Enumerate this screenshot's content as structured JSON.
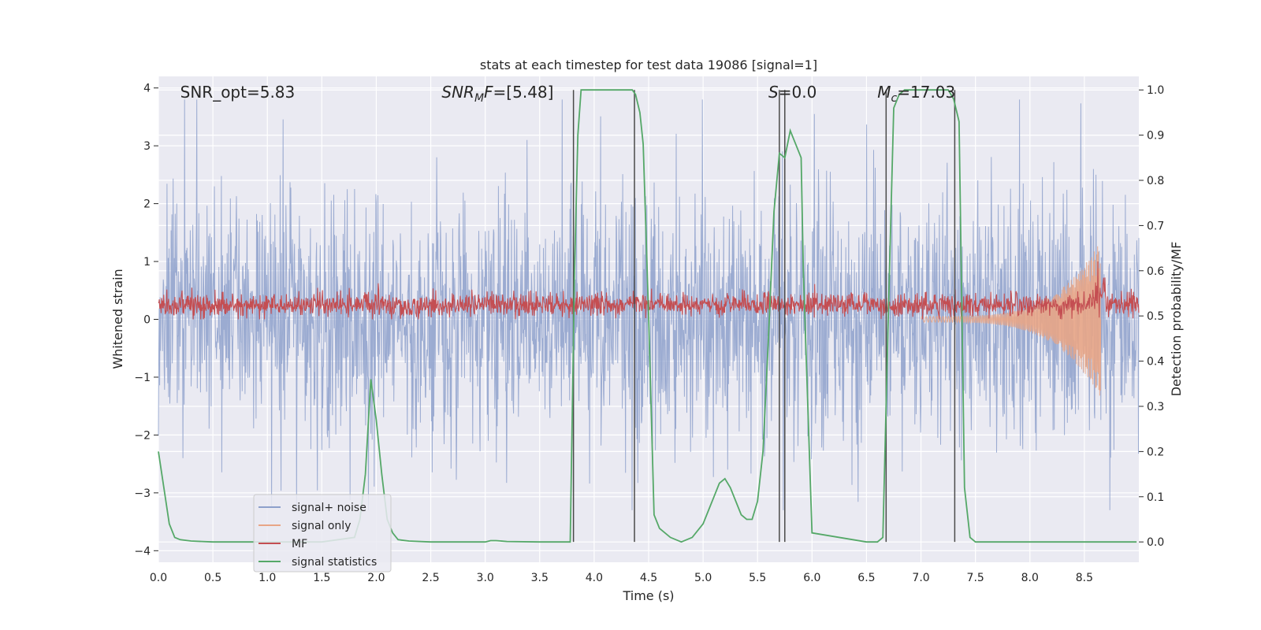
{
  "chart_data": {
    "type": "line",
    "title": "stats at each timestep for test data 19086 [signal=1]",
    "xlabel": "Time (s)",
    "ylabel_left": "Whitened strain",
    "ylabel_right": "Detection probability/MF",
    "xlim": [
      0.0,
      9.0
    ],
    "ylim_left": [
      -4.2,
      4.2
    ],
    "ylim_right": [
      -0.045,
      1.03
    ],
    "xticks": [
      "0.0",
      "0.5",
      "1.0",
      "1.5",
      "2.0",
      "2.5",
      "3.0",
      "3.5",
      "4.0",
      "4.5",
      "5.0",
      "5.5",
      "6.0",
      "6.5",
      "7.0",
      "7.5",
      "8.0",
      "8.5"
    ],
    "yticks_left": [
      "4",
      "3",
      "2",
      "1",
      "0",
      "−1",
      "−2",
      "−3",
      "−4"
    ],
    "yticks_right": [
      "1.0",
      "0.9",
      "0.8",
      "0.7",
      "0.6",
      "0.5",
      "0.4",
      "0.3",
      "0.2",
      "0.1",
      "0.0"
    ],
    "grid": true,
    "annotations": [
      {
        "text": "SNR_opt=5.83",
        "x": 0.2
      },
      {
        "text": "SNR_MF=[5.48]",
        "x": 2.6
      },
      {
        "text": "S=0.0",
        "x": 5.6
      },
      {
        "text": "M_c=17.03",
        "x": 6.6
      }
    ],
    "legend": {
      "placement": "lower-left",
      "entries": [
        {
          "label": "signal+ noise",
          "color": "#8da0cb"
        },
        {
          "label": "signal only",
          "color": "#e8a586"
        },
        {
          "label": "MF",
          "color": "#c44e52"
        },
        {
          "label": "signal statistics",
          "color": "#55a868"
        }
      ]
    },
    "series": [
      {
        "name": "signal+ noise",
        "color": "#8da0cb",
        "description_range": [
          -3.3,
          3.8
        ],
        "typical_envelope": [
          -2.2,
          2.2
        ]
      },
      {
        "name": "signal only",
        "color": "#e8a586",
        "chirp_x": [
          7.0,
          8.65
        ],
        "peak_amplitude": [
          -1.4,
          1.3
        ]
      },
      {
        "name": "MF",
        "color": "#c44e52",
        "typical_range": [
          0.05,
          0.55
        ]
      },
      {
        "name": "signal statistics",
        "color": "#55a868",
        "x": [
          0.0,
          0.05,
          0.1,
          0.15,
          0.2,
          0.3,
          0.5,
          1.0,
          1.5,
          1.8,
          1.85,
          1.9,
          1.95,
          2.0,
          2.05,
          2.1,
          2.15,
          2.2,
          2.3,
          2.5,
          3.0,
          3.05,
          3.1,
          3.2,
          3.5,
          3.78,
          3.82,
          3.85,
          3.88,
          3.9,
          4.0,
          4.3,
          4.35,
          4.38,
          4.42,
          4.45,
          4.5,
          4.55,
          4.6,
          4.7,
          4.8,
          4.9,
          5.0,
          5.05,
          5.1,
          5.15,
          5.2,
          5.25,
          5.3,
          5.35,
          5.4,
          5.45,
          5.5,
          5.55,
          5.6,
          5.65,
          5.7,
          5.75,
          5.8,
          5.85,
          5.9,
          5.92,
          6.0,
          6.5,
          6.6,
          6.65,
          6.7,
          6.75,
          6.8,
          6.85,
          6.9,
          7.25,
          7.3,
          7.35,
          7.4,
          7.45,
          7.5,
          8.0,
          8.5,
          8.98
        ],
        "y": [
          0.2,
          0.12,
          0.04,
          0.01,
          0.005,
          0.002,
          0.0,
          0.0,
          0.0,
          0.01,
          0.05,
          0.15,
          0.36,
          0.27,
          0.15,
          0.05,
          0.02,
          0.005,
          0.002,
          0.0,
          0.0,
          0.003,
          0.003,
          0.001,
          0.0,
          0.0,
          0.6,
          0.9,
          1.0,
          1.0,
          1.0,
          1.0,
          1.0,
          0.99,
          0.95,
          0.88,
          0.5,
          0.06,
          0.03,
          0.01,
          0.0,
          0.01,
          0.04,
          0.07,
          0.1,
          0.13,
          0.14,
          0.12,
          0.09,
          0.06,
          0.05,
          0.05,
          0.09,
          0.2,
          0.45,
          0.73,
          0.86,
          0.85,
          0.91,
          0.88,
          0.85,
          0.6,
          0.02,
          0.0,
          0.0,
          0.01,
          0.5,
          0.96,
          0.99,
          1.0,
          1.0,
          1.0,
          0.98,
          0.93,
          0.12,
          0.01,
          0.0,
          0.0,
          0.0,
          0.0
        ]
      }
    ],
    "vlines": [
      3.81,
      4.37,
      5.7,
      5.75,
      6.68,
      7.31
    ]
  }
}
